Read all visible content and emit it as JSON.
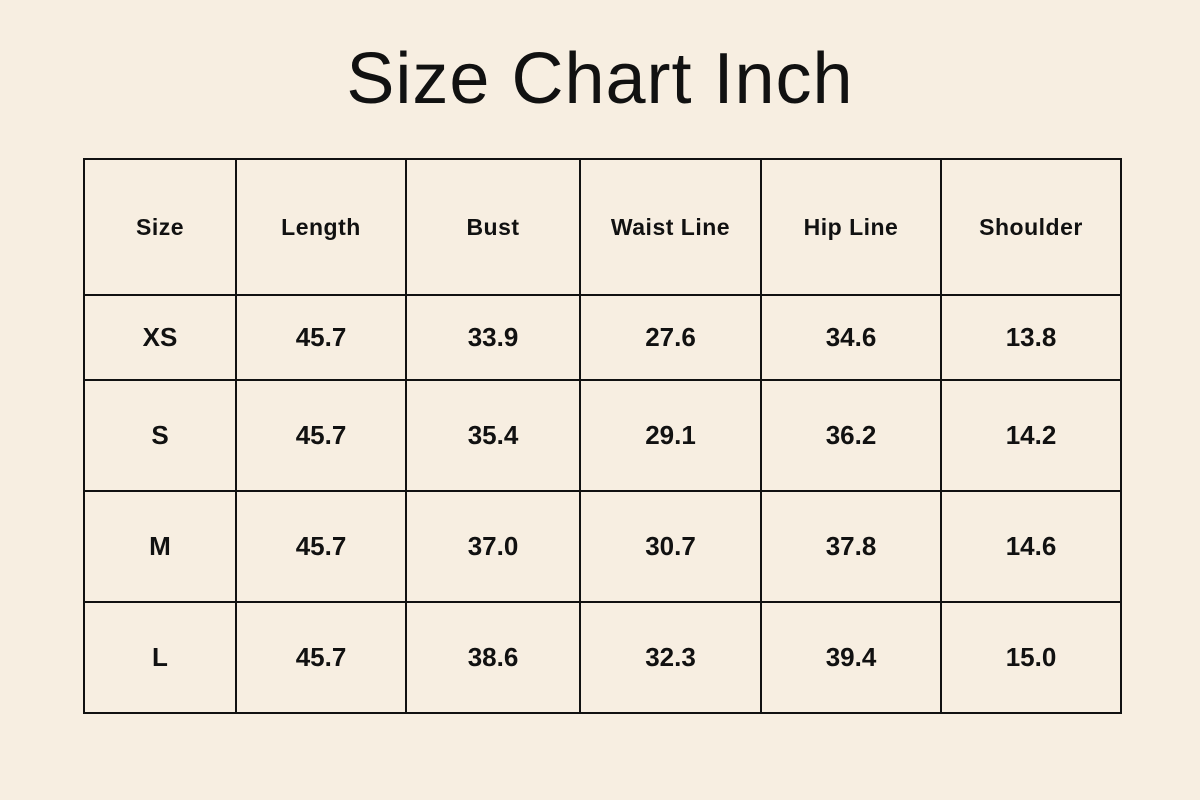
{
  "title": "Size Chart Inch",
  "table": {
    "headers": [
      "Size",
      "Length",
      "Bust",
      "Waist Line",
      "Hip Line",
      "Shoulder"
    ],
    "rows": [
      [
        "XS",
        "45.7",
        "33.9",
        "27.6",
        "34.6",
        "13.8"
      ],
      [
        "S",
        "45.7",
        "35.4",
        "29.1",
        "36.2",
        "14.2"
      ],
      [
        "M",
        "45.7",
        "37.0",
        "30.7",
        "37.8",
        "14.6"
      ],
      [
        "L",
        "45.7",
        "38.6",
        "32.3",
        "39.4",
        "15.0"
      ]
    ]
  },
  "colors": {
    "background": "#F7EEE1",
    "text": "#111111",
    "border": "#111111"
  }
}
